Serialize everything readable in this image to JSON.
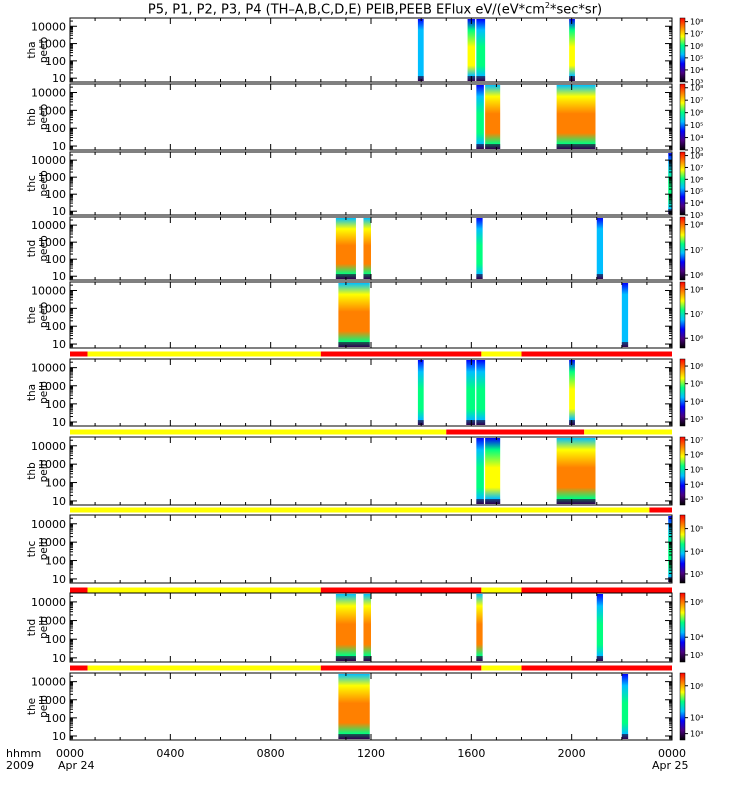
{
  "title": {
    "main": "P5, P1, P2, P3, P4 (TH–A,B,C,D,E) PEIB,PEEB EFlux eV/(eV*cm",
    "exp": "2",
    "tail": "*sec*sr)"
  },
  "xaxis": {
    "row_label_1": "hhmm",
    "row_label_2": "2009",
    "ticks": [
      "0000",
      "0400",
      "0800",
      "1200",
      "1600",
      "2000",
      "0000"
    ],
    "tick_hours": [
      0,
      4,
      8,
      12,
      16,
      20,
      24
    ],
    "minor_hours": [
      1,
      2,
      3,
      5,
      6,
      7,
      9,
      10,
      11,
      13,
      14,
      15,
      17,
      18,
      19,
      21,
      22,
      23
    ],
    "date_start": "Apr 24",
    "date_end": "Apr 25",
    "range_hours": [
      0,
      24
    ]
  },
  "yaxis": {
    "ticks": [
      "10",
      "100",
      "1000",
      "10000"
    ],
    "tick_values": [
      10,
      100,
      1000,
      10000
    ],
    "range": [
      6,
      30000
    ],
    "scale": "log"
  },
  "colors": {
    "mode_yellow": "#ffff00",
    "mode_red": "#ff0000",
    "colormap": [
      "#000000",
      "#4b0080",
      "#0000ff",
      "#00bfff",
      "#00ff80",
      "#ffff00",
      "#ff8000",
      "#ff0000"
    ]
  },
  "chart_data": [
    {
      "type": "heatmap",
      "probe": "thA",
      "label1": "tha",
      "label2": "peeb",
      "colorbar": {
        "labels": [
          "10⁸",
          "10⁷",
          "10⁶",
          "10⁵",
          "10⁴",
          "10³"
        ],
        "exps": [
          8,
          7,
          6,
          5,
          4,
          3
        ],
        "range": [
          3,
          8.3
        ]
      },
      "bursts": [
        {
          "start": 13.87,
          "end": 14.1,
          "level": 0.45
        },
        {
          "start": 15.85,
          "end": 16.15,
          "level": 0.65
        },
        {
          "start": 16.2,
          "end": 16.55,
          "level": 0.6
        },
        {
          "start": 19.9,
          "end": 20.13,
          "level": 0.7
        }
      ]
    },
    {
      "type": "heatmap",
      "probe": "thB",
      "label1": "thb",
      "label2": "peeb",
      "colorbar": {
        "labels": [
          "10⁸",
          "10⁷",
          "10⁶",
          "10⁵",
          "10⁴",
          "10³"
        ],
        "exps": [
          8,
          7,
          6,
          5,
          4,
          3
        ],
        "range": [
          3,
          8.3
        ]
      },
      "bursts": [
        {
          "start": 16.2,
          "end": 16.5,
          "level": 0.55
        },
        {
          "start": 16.55,
          "end": 17.15,
          "level": 0.8
        },
        {
          "start": 19.4,
          "end": 20.95,
          "level": 0.85
        }
      ]
    },
    {
      "type": "heatmap",
      "probe": "thC",
      "label1": "thc",
      "label2": "peeb",
      "colorbar": {
        "labels": [
          "10⁸",
          "10⁷",
          "10⁶",
          "10⁵",
          "10⁴",
          "10³"
        ],
        "exps": [
          8,
          7,
          6,
          5,
          4,
          3
        ],
        "range": [
          3,
          8.3
        ]
      },
      "bursts": [
        {
          "start": 23.85,
          "end": 24.0,
          "level": 0.5
        }
      ]
    },
    {
      "type": "heatmap",
      "probe": "thD",
      "label1": "thd",
      "label2": "peeb",
      "colorbar": {
        "labels": [
          "10⁸",
          "10⁷",
          "10⁶"
        ],
        "exps": [
          8,
          7,
          6
        ],
        "range": [
          5.8,
          8.3
        ]
      },
      "bursts": [
        {
          "start": 10.6,
          "end": 11.4,
          "level": 0.85
        },
        {
          "start": 11.7,
          "end": 12.0,
          "level": 0.85
        },
        {
          "start": 16.2,
          "end": 16.45,
          "level": 0.55
        },
        {
          "start": 21.0,
          "end": 21.25,
          "level": 0.45
        }
      ]
    },
    {
      "type": "heatmap",
      "probe": "thE",
      "label1": "the",
      "label2": "peeb",
      "colorbar": {
        "labels": [
          "10⁸",
          "10⁷",
          "10⁶"
        ],
        "exps": [
          8,
          7,
          6
        ],
        "range": [
          5.6,
          8.3
        ]
      },
      "bursts": [
        {
          "start": 10.7,
          "end": 11.95,
          "level": 0.85
        },
        {
          "start": 22.0,
          "end": 22.25,
          "level": 0.45
        }
      ]
    },
    {
      "type": "heatmap",
      "probe": "thA",
      "label1": "tha",
      "label2": "peib",
      "colorbar": {
        "labels": [
          "10⁶",
          "10⁵",
          "10⁴",
          "10³"
        ],
        "exps": [
          6,
          5,
          4,
          3
        ],
        "range": [
          2.6,
          6.4
        ]
      },
      "mode_bar": [
        {
          "start": 0,
          "end": 0.7,
          "mode": "red"
        },
        {
          "start": 0.7,
          "end": 10.0,
          "mode": "yellow"
        },
        {
          "start": 10.0,
          "end": 16.4,
          "mode": "red"
        },
        {
          "start": 16.4,
          "end": 18.0,
          "mode": "yellow"
        },
        {
          "start": 18.0,
          "end": 24.0,
          "mode": "red"
        }
      ],
      "bursts": [
        {
          "start": 13.87,
          "end": 14.1,
          "level": 0.55
        },
        {
          "start": 15.8,
          "end": 16.15,
          "level": 0.6
        },
        {
          "start": 16.2,
          "end": 16.55,
          "level": 0.6
        },
        {
          "start": 19.9,
          "end": 20.13,
          "level": 0.7
        }
      ]
    },
    {
      "type": "heatmap",
      "probe": "thB",
      "label1": "thb",
      "label2": "peib",
      "colorbar": {
        "labels": [
          "10⁷",
          "10⁶",
          "10⁵",
          "10⁴",
          "10³"
        ],
        "exps": [
          7,
          6,
          5,
          4,
          3
        ],
        "range": [
          2.6,
          7.2
        ]
      },
      "mode_bar": [
        {
          "start": 0,
          "end": 15.0,
          "mode": "yellow"
        },
        {
          "start": 15.0,
          "end": 20.5,
          "mode": "red"
        },
        {
          "start": 20.5,
          "end": 24.0,
          "mode": "yellow"
        }
      ],
      "bursts": [
        {
          "start": 16.2,
          "end": 16.5,
          "level": 0.6
        },
        {
          "start": 16.55,
          "end": 17.15,
          "level": 0.7
        },
        {
          "start": 19.4,
          "end": 20.95,
          "level": 0.8
        }
      ]
    },
    {
      "type": "heatmap",
      "probe": "thC",
      "label1": "thc",
      "label2": "peib",
      "colorbar": {
        "labels": [
          "10⁵",
          "10⁴",
          "10³"
        ],
        "exps": [
          5,
          4,
          3
        ],
        "range": [
          2.6,
          5.6
        ]
      },
      "mode_bar": [
        {
          "start": 0,
          "end": 23.1,
          "mode": "yellow"
        },
        {
          "start": 23.1,
          "end": 24.0,
          "mode": "red"
        }
      ],
      "bursts": [
        {
          "start": 23.85,
          "end": 24.0,
          "level": 0.5
        }
      ]
    },
    {
      "type": "heatmap",
      "probe": "thD",
      "label1": "thd",
      "label2": "peib",
      "colorbar": {
        "labels": [
          "10⁶",
          "10⁴",
          "10³"
        ],
        "exps": [
          6,
          4,
          3
        ],
        "range": [
          2.6,
          6.5
        ]
      },
      "mode_bar": [
        {
          "start": 0,
          "end": 0.7,
          "mode": "red"
        },
        {
          "start": 0.7,
          "end": 10.0,
          "mode": "yellow"
        },
        {
          "start": 10.0,
          "end": 16.4,
          "mode": "red"
        },
        {
          "start": 16.4,
          "end": 18.0,
          "mode": "yellow"
        },
        {
          "start": 18.0,
          "end": 24.0,
          "mode": "red"
        }
      ],
      "bursts": [
        {
          "start": 10.6,
          "end": 11.4,
          "level": 0.85
        },
        {
          "start": 11.7,
          "end": 12.0,
          "level": 0.85
        },
        {
          "start": 16.2,
          "end": 16.45,
          "level": 0.9
        },
        {
          "start": 21.0,
          "end": 21.25,
          "level": 0.6
        }
      ]
    },
    {
      "type": "heatmap",
      "probe": "thE",
      "label1": "the",
      "label2": "peib",
      "colorbar": {
        "labels": [
          "10⁶",
          "10⁴",
          "10³"
        ],
        "exps": [
          6,
          4,
          3
        ],
        "range": [
          2.6,
          6.8
        ]
      },
      "mode_bar": [
        {
          "start": 0,
          "end": 0.7,
          "mode": "red"
        },
        {
          "start": 0.7,
          "end": 10.0,
          "mode": "yellow"
        },
        {
          "start": 10.0,
          "end": 16.4,
          "mode": "red"
        },
        {
          "start": 16.4,
          "end": 18.0,
          "mode": "yellow"
        },
        {
          "start": 18.0,
          "end": 24.0,
          "mode": "red"
        }
      ],
      "bursts": [
        {
          "start": 10.7,
          "end": 11.95,
          "level": 0.85
        },
        {
          "start": 22.0,
          "end": 22.25,
          "level": 0.5
        }
      ]
    }
  ]
}
